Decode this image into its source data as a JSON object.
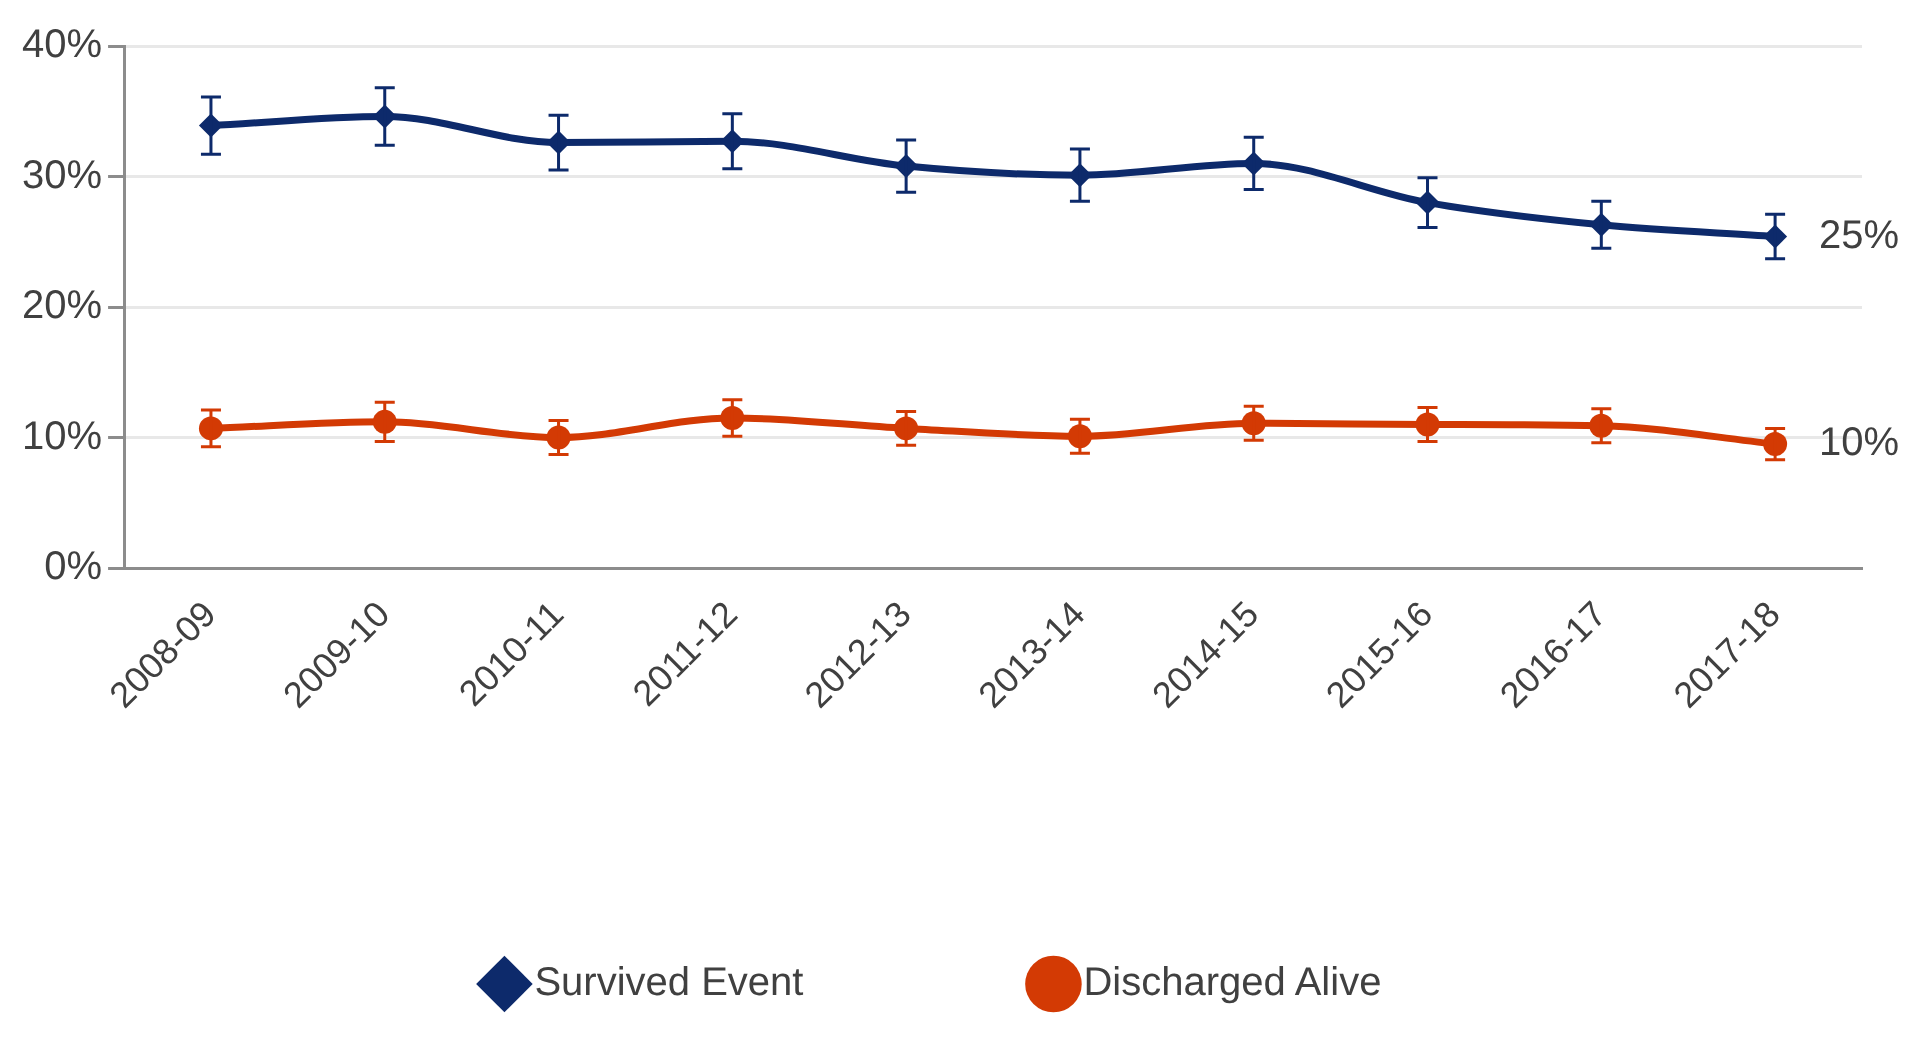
{
  "chart_data": {
    "type": "line",
    "categories": [
      "2008-09",
      "2009-10",
      "2010-11",
      "2011-12",
      "2012-13",
      "2013-14",
      "2014-15",
      "2015-16",
      "2016-17",
      "2017-18"
    ],
    "series": [
      {
        "name": "Survived Event",
        "color": "#0d2a6b",
        "marker": "diamond",
        "values": [
          33.9,
          34.6,
          32.6,
          32.7,
          30.8,
          30.1,
          31.0,
          28.0,
          26.3,
          25.4
        ],
        "errors": [
          2.2,
          2.2,
          2.1,
          2.1,
          2.0,
          2.0,
          2.0,
          1.9,
          1.8,
          1.7
        ]
      },
      {
        "name": "Discharged Alive",
        "color": "#d33a04",
        "marker": "circle",
        "values": [
          10.7,
          11.2,
          10.0,
          11.5,
          10.7,
          10.1,
          11.1,
          11.0,
          10.9,
          9.5
        ],
        "errors": [
          1.4,
          1.5,
          1.3,
          1.4,
          1.3,
          1.3,
          1.3,
          1.3,
          1.3,
          1.2
        ]
      }
    ],
    "ylim": [
      0,
      40
    ],
    "yticks": [
      {
        "value": 0,
        "label": "0%"
      },
      {
        "value": 10,
        "label": "10%"
      },
      {
        "value": 20,
        "label": "20%"
      },
      {
        "value": 30,
        "label": "30%"
      },
      {
        "value": 40,
        "label": "40%"
      }
    ],
    "grid": "y",
    "legend": "bottom",
    "annotations": [
      {
        "text": "25%",
        "x": "2017-18",
        "y": 25.4
      },
      {
        "text": "10%",
        "x": "2017-18",
        "y": 9.5
      }
    ]
  }
}
